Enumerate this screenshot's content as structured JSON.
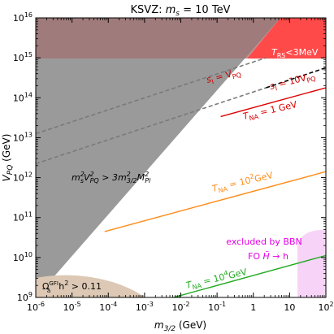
{
  "chart_data": {
    "type": "line",
    "title": "KSVZ:  m_s = 10 TeV",
    "xlabel": "m_3/2 (GeV)",
    "ylabel": "V_PQ (GeV)",
    "x_scale": "log",
    "y_scale": "log",
    "xlim_log10": [
      -6,
      2
    ],
    "ylim_log10": [
      9,
      16
    ],
    "x_ticks_log10": [
      -6,
      -5,
      -4,
      -3,
      -2,
      -1,
      0,
      1,
      2
    ],
    "x_tick_labels": [
      "10^-6",
      "10^-5",
      "10^-4",
      "10^-3",
      "10^-2",
      "10^-1",
      "1",
      "10",
      "10^2"
    ],
    "y_ticks_log10": [
      9,
      10,
      11,
      12,
      13,
      14,
      15,
      16
    ],
    "y_tick_labels": [
      "10^9",
      "10^10",
      "10^11",
      "10^12",
      "10^13",
      "10^14",
      "10^15",
      "10^16"
    ],
    "regions": [
      {
        "label": "m_s^2 V_PQ^2 > 3 m_3/2^2 M_Pl^2",
        "color": "#9a9a9a"
      },
      {
        "label": "T_RS < 3MeV",
        "color": "#ff4a4a"
      },
      {
        "label": "Ω_ã^GFI h^2 > 0.11",
        "color": "#dcc8b4"
      },
      {
        "label": "excluded by BBN  FO  H̃ → h",
        "color": "#f7d4f7",
        "text_color": "#e600e6"
      }
    ],
    "series": [
      {
        "label": "s_I = V_PQ",
        "color": "#7a7a7a",
        "style": "dashed",
        "x_log10": [
          -6,
          0.35
        ],
        "y_log10": [
          13.1,
          15.0
        ]
      },
      {
        "label": "s_I = 10 V_PQ",
        "color": "#7a7a7a",
        "style": "dashed",
        "x_log10": [
          -6,
          0.35
        ],
        "y_log10": [
          12.35,
          14.25
        ]
      },
      {
        "label": "s_I = 10 V_PQ (upper segment)",
        "color": "#000000",
        "style": "dashed",
        "x_log10": [
          0.35,
          2
        ],
        "y_log10": [
          14.25,
          14.75
        ]
      },
      {
        "label": "T_NA = 1 GeV",
        "color": "#dd0000",
        "style": "solid",
        "x_log10": [
          -0.9,
          2
        ],
        "y_log10": [
          13.53,
          14.25
        ]
      },
      {
        "label": "T_NA = 10^2 GeV",
        "color": "#ff8c1a",
        "style": "solid",
        "x_log10": [
          -4.1,
          2
        ],
        "y_log10": [
          10.65,
          12.15
        ]
      },
      {
        "label": "T_NA = 10^4 GeV",
        "color": "#22aa22",
        "style": "solid",
        "x_log10": [
          -2.6,
          2
        ],
        "y_log10": [
          8.9,
          10.05
        ]
      }
    ],
    "annotations": {
      "ms_condition": "m_s^2 V_PQ^2 > 3 m_3/2^2 M_Pl^2",
      "trs": "T_RS<3MeV",
      "sI1": "s_I = V_PQ",
      "sI10": "s_I = 10 V_PQ",
      "tna1": "T_NA = 1 GeV",
      "tna2": "T_NA = 10^2 GeV",
      "tna4": "T_NA = 10^4 GeV",
      "bbn1": "excluded by BBN",
      "bbn2": "FO  H̃ → h",
      "omega": "Ω_ã^GFI h^2 > 0.11"
    },
    "grid": false
  }
}
